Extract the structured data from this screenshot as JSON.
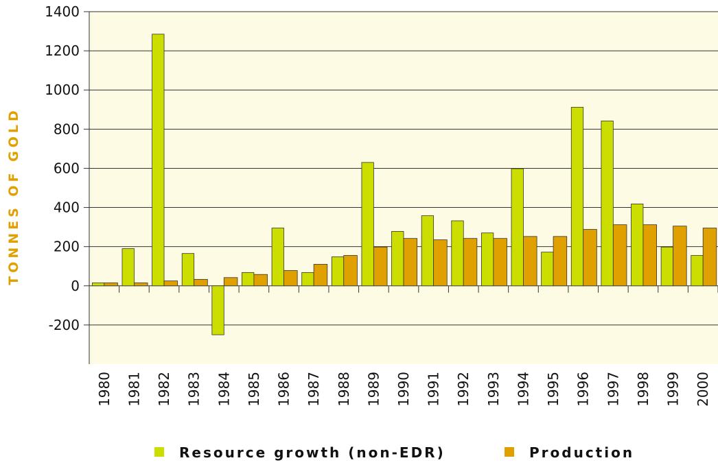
{
  "chart_data": {
    "type": "bar",
    "y_label": "TONNES OF GOLD",
    "categories": [
      "1980",
      "1981",
      "1982",
      "1983",
      "1984",
      "1985",
      "1986",
      "1987",
      "1988",
      "1989",
      "1990",
      "1991",
      "1992",
      "1993",
      "1994",
      "1995",
      "1996",
      "1997",
      "1998",
      "1999",
      "2000"
    ],
    "series": [
      {
        "name": "Resource growth (non-EDR)",
        "color": "#ccdd00",
        "values": [
          15,
          190,
          1285,
          165,
          -250,
          68,
          295,
          68,
          148,
          630,
          278,
          358,
          332,
          270,
          598,
          172,
          912,
          842,
          418,
          198,
          155
        ]
      },
      {
        "name": "Production",
        "color": "#e0a000",
        "values": [
          15,
          15,
          25,
          33,
          42,
          58,
          78,
          110,
          155,
          198,
          242,
          235,
          242,
          242,
          252,
          252,
          288,
          312,
          312,
          305,
          295
        ]
      }
    ],
    "ylim": [
      -400,
      1400
    ],
    "yticks": [
      -200,
      0,
      200,
      400,
      600,
      800,
      1000,
      1200,
      1400
    ],
    "grid": true
  }
}
